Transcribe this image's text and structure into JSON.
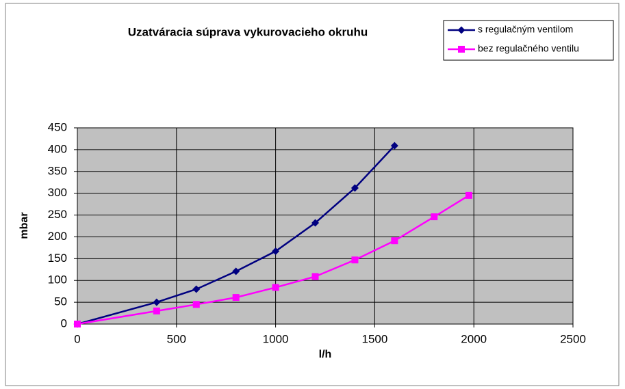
{
  "chart_data": {
    "type": "line",
    "title": "Uzatváracia súprava vykurovacieho okruhu",
    "xlabel": "l/h",
    "ylabel": "mbar",
    "xlim": [
      0,
      2500
    ],
    "xticks": [
      0,
      500,
      1000,
      1500,
      2000,
      2500
    ],
    "ylim": [
      0,
      450
    ],
    "yticks": [
      0,
      50,
      100,
      150,
      200,
      250,
      300,
      350,
      400,
      450
    ],
    "grid": true,
    "legend": "top-right",
    "series": [
      {
        "name": "s regulačným ventilom",
        "color": "#000080",
        "marker": "diamond",
        "x": [
          0,
          400,
          600,
          800,
          1000,
          1200,
          1400,
          1600
        ],
        "values": [
          0,
          50,
          80,
          121,
          167,
          232,
          312,
          409
        ]
      },
      {
        "name": "bez regulačného ventilu",
        "color": "#ff00ff",
        "marker": "square",
        "x": [
          0,
          400,
          600,
          800,
          1000,
          1200,
          1400,
          1600,
          1800,
          1975
        ],
        "values": [
          0,
          30,
          45,
          61,
          84,
          109,
          147,
          191,
          246,
          295
        ]
      }
    ]
  }
}
